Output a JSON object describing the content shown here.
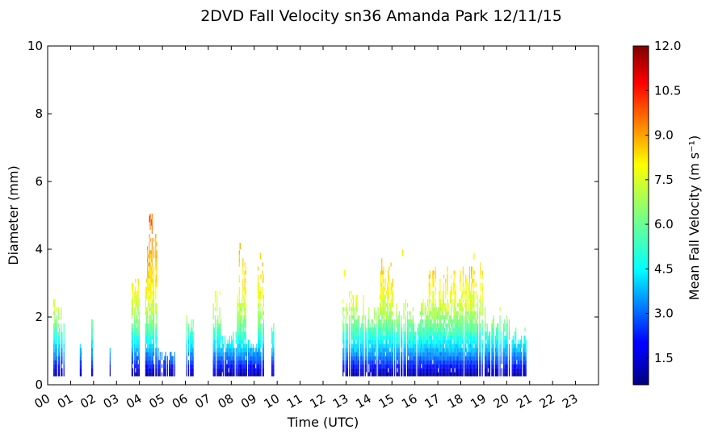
{
  "chart_data": {
    "type": "heatmap",
    "title": "2DVD Fall Velocity sn36 Amanda Park 12/11/15",
    "xlabel": "Time (UTC)",
    "ylabel": "Diameter (mm)",
    "xlim": [
      0,
      24
    ],
    "ylim": [
      0,
      10
    ],
    "x_ticks": [
      "00",
      "01",
      "02",
      "03",
      "04",
      "05",
      "06",
      "07",
      "08",
      "09",
      "10",
      "11",
      "12",
      "13",
      "14",
      "15",
      "16",
      "17",
      "18",
      "19",
      "20",
      "21",
      "22",
      "23"
    ],
    "y_ticks": [
      "0",
      "2",
      "4",
      "6",
      "8",
      "10"
    ],
    "colorbar": {
      "label": "Mean Fall Velocity (m s⁻¹)",
      "min": 0.6,
      "max": 12.0,
      "ticks": [
        "1.5",
        "3.0",
        "4.5",
        "6.0",
        "7.5",
        "9.0",
        "10.5",
        "12.0"
      ],
      "tick_values": [
        1.5,
        3.0,
        4.5,
        6.0,
        7.5,
        9.0,
        10.5,
        12.0
      ],
      "colormap": "jet"
    },
    "bin_width_mm": 0.12,
    "min_diameter_mm": 0.25,
    "precip_columns": [
      {
        "start": 0.25,
        "end": 0.78,
        "max_diameter": 2.5,
        "fill": 0.55
      },
      {
        "start": 1.4,
        "end": 1.46,
        "max_diameter": 1.4,
        "fill": 0.8
      },
      {
        "start": 1.9,
        "end": 1.96,
        "max_diameter": 2.0,
        "fill": 0.8
      },
      {
        "start": 2.7,
        "end": 2.76,
        "max_diameter": 1.2,
        "fill": 0.9
      },
      {
        "start": 3.65,
        "end": 4.05,
        "max_diameter": 3.8,
        "fill": 0.9
      },
      {
        "start": 4.25,
        "end": 4.8,
        "max_diameter": 5.0,
        "fill": 0.92
      },
      {
        "start": 4.8,
        "end": 5.55,
        "max_diameter": 1.0,
        "fill": 0.9
      },
      {
        "start": 6.0,
        "end": 6.35,
        "max_diameter": 2.0,
        "fill": 0.6
      },
      {
        "start": 7.2,
        "end": 7.55,
        "max_diameter": 2.8,
        "fill": 0.85
      },
      {
        "start": 7.55,
        "end": 8.2,
        "max_diameter": 1.6,
        "fill": 0.8
      },
      {
        "start": 8.25,
        "end": 8.65,
        "max_diameter": 4.0,
        "fill": 0.92
      },
      {
        "start": 8.65,
        "end": 9.2,
        "max_diameter": 1.3,
        "fill": 0.8
      },
      {
        "start": 9.15,
        "end": 9.4,
        "max_diameter": 3.6,
        "fill": 0.9
      },
      {
        "start": 9.75,
        "end": 9.85,
        "max_diameter": 1.9,
        "fill": 0.7
      },
      {
        "start": 12.85,
        "end": 13.3,
        "max_diameter": 3.2,
        "fill": 0.7
      },
      {
        "start": 13.3,
        "end": 14.5,
        "max_diameter": 2.6,
        "fill": 0.85
      },
      {
        "start": 14.5,
        "end": 15.1,
        "max_diameter": 3.8,
        "fill": 0.85
      },
      {
        "start": 15.1,
        "end": 16.6,
        "max_diameter": 2.5,
        "fill": 0.85
      },
      {
        "start": 16.6,
        "end": 18.0,
        "max_diameter": 3.5,
        "fill": 0.9
      },
      {
        "start": 18.0,
        "end": 19.05,
        "max_diameter": 3.6,
        "fill": 0.88
      },
      {
        "start": 19.05,
        "end": 20.1,
        "max_diameter": 2.2,
        "fill": 0.85
      },
      {
        "start": 20.1,
        "end": 20.85,
        "max_diameter": 1.7,
        "fill": 0.85
      }
    ],
    "outliers": [
      {
        "x": 4.42,
        "d": 4.8,
        "v": 10.0
      },
      {
        "x": 4.5,
        "d": 4.7,
        "v": 9.6
      },
      {
        "x": 8.36,
        "d": 4.0,
        "v": 8.6
      },
      {
        "x": 9.25,
        "d": 3.7,
        "v": 8.2
      },
      {
        "x": 15.45,
        "d": 3.8,
        "v": 8.0
      },
      {
        "x": 18.55,
        "d": 3.7,
        "v": 7.8
      },
      {
        "x": 12.9,
        "d": 3.2,
        "v": 7.6
      }
    ]
  }
}
